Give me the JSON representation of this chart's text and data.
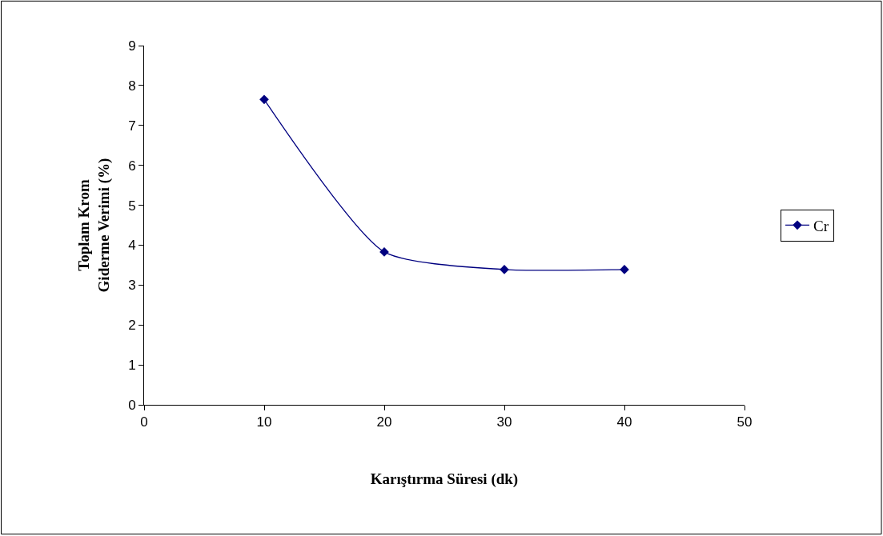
{
  "chart_data": {
    "type": "line",
    "xlabel": "Karıştırma Süresi (dk)",
    "ylabel": "Toplam Krom\nGiderme Verimi (%)",
    "x": [
      10,
      20,
      30,
      40
    ],
    "series": [
      {
        "name": "Cr",
        "color": "#000080",
        "values": [
          7.65,
          3.83,
          3.39,
          3.39
        ]
      }
    ],
    "xlim": [
      0,
      50
    ],
    "xticks": [
      0,
      10,
      20,
      30,
      40,
      50
    ],
    "ylim": [
      0,
      9
    ],
    "yticks": [
      0,
      1,
      2,
      3,
      4,
      5,
      6,
      7,
      8,
      9
    ],
    "legend": "right",
    "marker": "diamond",
    "line_style": "solid"
  }
}
